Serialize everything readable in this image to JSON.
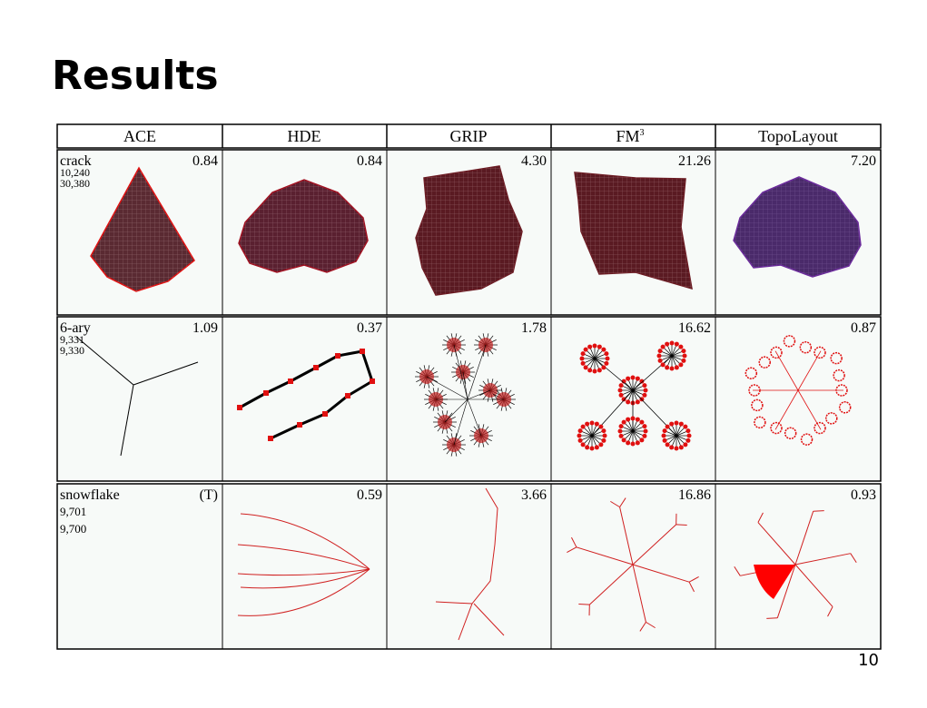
{
  "title": "Results",
  "table": {
    "columns": [
      "ACE",
      "HDE",
      "GRIP",
      {
        "label": "FM",
        "superscript": "3"
      },
      "TopoLayout"
    ],
    "rows": [
      {
        "name": "crack",
        "nodes": "10,240",
        "edges": "30,380",
        "times": [
          "0.84",
          "0.84",
          "4.30",
          "21.26",
          "7.20"
        ]
      },
      {
        "name": "6-ary",
        "nodes": "9,331",
        "edges": "9,330",
        "times": [
          "1.09",
          "0.37",
          "1.78",
          "16.62",
          "0.87"
        ]
      },
      {
        "name": "snowflake",
        "nodes": "9,701",
        "edges": "9,700",
        "times": [
          "(T)",
          "0.59",
          "3.66",
          "16.86",
          "0.93"
        ]
      }
    ]
  },
  "page_number": "10"
}
